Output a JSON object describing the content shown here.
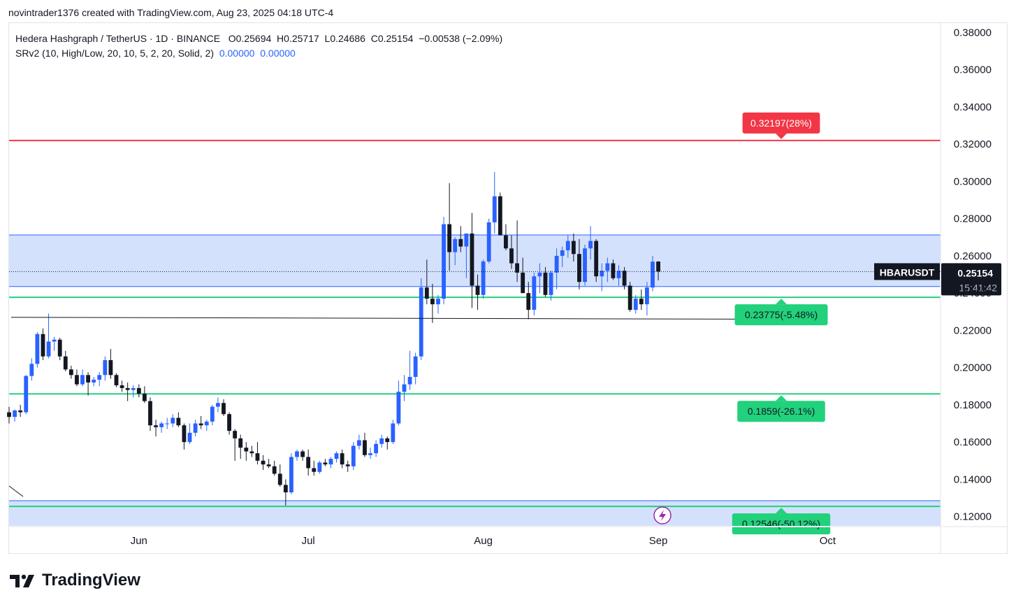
{
  "caption": "novintrader1376 created with TradingView.com, Aug 23, 2025 04:18 UTC-4",
  "legend": {
    "symbol_line": "Hedera Hashgraph / TetherUS · 1D · BINANCE",
    "open": "O0.25694",
    "high": "H0.25717",
    "low": "L0.24686",
    "close": "C0.25154",
    "change": "−0.00538 (−2.09%)",
    "indicator": "SRv2 (10, High/Low, 20, 10, 5, 2, 20, Solid, 2)",
    "indicator_v1": "0.00000",
    "indicator_v2": "0.00000"
  },
  "brand": {
    "name": "TradingView",
    "icon": "tradingview-logo-icon"
  },
  "price_tag": {
    "symbol": "HBARUSDT",
    "price": "0.25154",
    "countdown": "15:41:42"
  },
  "colors": {
    "up": "#2962ff",
    "down": "#131722",
    "resistance": "#f23645",
    "support": "#22d17b",
    "zone": "#d4e1fd",
    "zone_border": "#2962ff",
    "label_green": "#22d17b",
    "label_red": "#f23645"
  },
  "chart_data": {
    "type": "candlestick",
    "title": "Hedera Hashgraph / TetherUS · 1D · BINANCE",
    "ylim": [
      0.115,
      0.385
    ],
    "y_ticks": [
      "0.12000",
      "0.14000",
      "0.16000",
      "0.18000",
      "0.20000",
      "0.22000",
      "0.24000",
      "0.26000",
      "0.28000",
      "0.30000",
      "0.32000",
      "0.34000",
      "0.36000",
      "0.38000"
    ],
    "x_ticks": [
      "Jun",
      "Jul",
      "Aug",
      "Sep",
      "Oct"
    ],
    "x_range": [
      "2025-05-09",
      "2025-10-21"
    ],
    "levels": [
      {
        "price": 0.32197,
        "label": "0.32197(28%)",
        "color": "red"
      },
      {
        "price": 0.23775,
        "label": "0.23775(-5.48%)",
        "color": "green"
      },
      {
        "price": 0.1859,
        "label": "0.1859(-26.1%)",
        "color": "green"
      },
      {
        "price": 0.12546,
        "label": "0.12546(-50.12%)",
        "color": "green"
      }
    ],
    "zones": [
      {
        "from": 0.2435,
        "to": 0.2712
      },
      {
        "from": 0.115,
        "to": 0.1285
      }
    ],
    "trendline": {
      "start": [
        "2025-05-09",
        0.227
      ],
      "end": [
        "2025-09-16",
        0.226
      ]
    },
    "candles": [
      {
        "d": "2025-05-09",
        "o": 0.176,
        "h": 0.179,
        "l": 0.17,
        "c": 0.1735
      },
      {
        "d": "2025-05-10",
        "o": 0.1735,
        "h": 0.1775,
        "l": 0.171,
        "c": 0.177
      },
      {
        "d": "2025-05-11",
        "o": 0.177,
        "h": 0.18,
        "l": 0.1735,
        "c": 0.176
      },
      {
        "d": "2025-05-12",
        "o": 0.176,
        "h": 0.196,
        "l": 0.175,
        "c": 0.1955
      },
      {
        "d": "2025-05-13",
        "o": 0.1955,
        "h": 0.205,
        "l": 0.193,
        "c": 0.202
      },
      {
        "d": "2025-05-14",
        "o": 0.202,
        "h": 0.219,
        "l": 0.2,
        "c": 0.218
      },
      {
        "d": "2025-05-15",
        "o": 0.218,
        "h": 0.221,
        "l": 0.204,
        "c": 0.206
      },
      {
        "d": "2025-05-16",
        "o": 0.206,
        "h": 0.229,
        "l": 0.205,
        "c": 0.214
      },
      {
        "d": "2025-05-17",
        "o": 0.214,
        "h": 0.2165,
        "l": 0.209,
        "c": 0.215
      },
      {
        "d": "2025-05-18",
        "o": 0.215,
        "h": 0.216,
        "l": 0.204,
        "c": 0.206
      },
      {
        "d": "2025-05-19",
        "o": 0.206,
        "h": 0.209,
        "l": 0.198,
        "c": 0.199
      },
      {
        "d": "2025-05-20",
        "o": 0.199,
        "h": 0.201,
        "l": 0.194,
        "c": 0.196
      },
      {
        "d": "2025-05-21",
        "o": 0.196,
        "h": 0.199,
        "l": 0.19,
        "c": 0.191
      },
      {
        "d": "2025-05-22",
        "o": 0.191,
        "h": 0.199,
        "l": 0.19,
        "c": 0.196
      },
      {
        "d": "2025-05-23",
        "o": 0.196,
        "h": 0.1975,
        "l": 0.185,
        "c": 0.192
      },
      {
        "d": "2025-05-24",
        "o": 0.192,
        "h": 0.195,
        "l": 0.19,
        "c": 0.1935
      },
      {
        "d": "2025-05-25",
        "o": 0.1935,
        "h": 0.1975,
        "l": 0.19,
        "c": 0.196
      },
      {
        "d": "2025-05-26",
        "o": 0.196,
        "h": 0.206,
        "l": 0.193,
        "c": 0.204
      },
      {
        "d": "2025-05-27",
        "o": 0.204,
        "h": 0.21,
        "l": 0.194,
        "c": 0.196
      },
      {
        "d": "2025-05-28",
        "o": 0.196,
        "h": 0.197,
        "l": 0.1895,
        "c": 0.1905
      },
      {
        "d": "2025-05-29",
        "o": 0.1905,
        "h": 0.193,
        "l": 0.187,
        "c": 0.189
      },
      {
        "d": "2025-05-30",
        "o": 0.189,
        "h": 0.192,
        "l": 0.182,
        "c": 0.188
      },
      {
        "d": "2025-05-31",
        "o": 0.188,
        "h": 0.1905,
        "l": 0.184,
        "c": 0.189
      },
      {
        "d": "2025-06-01",
        "o": 0.189,
        "h": 0.191,
        "l": 0.184,
        "c": 0.186
      },
      {
        "d": "2025-06-02",
        "o": 0.186,
        "h": 0.19,
        "l": 0.181,
        "c": 0.182
      },
      {
        "d": "2025-06-03",
        "o": 0.182,
        "h": 0.184,
        "l": 0.166,
        "c": 0.169
      },
      {
        "d": "2025-06-04",
        "o": 0.169,
        "h": 0.172,
        "l": 0.163,
        "c": 0.168
      },
      {
        "d": "2025-06-05",
        "o": 0.168,
        "h": 0.171,
        "l": 0.165,
        "c": 0.17
      },
      {
        "d": "2025-06-06",
        "o": 0.17,
        "h": 0.173,
        "l": 0.167,
        "c": 0.17
      },
      {
        "d": "2025-06-07",
        "o": 0.17,
        "h": 0.175,
        "l": 0.168,
        "c": 0.173
      },
      {
        "d": "2025-06-08",
        "o": 0.173,
        "h": 0.176,
        "l": 0.168,
        "c": 0.169
      },
      {
        "d": "2025-06-09",
        "o": 0.169,
        "h": 0.17,
        "l": 0.156,
        "c": 0.16
      },
      {
        "d": "2025-06-10",
        "o": 0.16,
        "h": 0.17,
        "l": 0.159,
        "c": 0.165
      },
      {
        "d": "2025-06-11",
        "o": 0.165,
        "h": 0.172,
        "l": 0.163,
        "c": 0.17
      },
      {
        "d": "2025-06-12",
        "o": 0.17,
        "h": 0.174,
        "l": 0.167,
        "c": 0.169
      },
      {
        "d": "2025-06-13",
        "o": 0.169,
        "h": 0.172,
        "l": 0.166,
        "c": 0.171
      },
      {
        "d": "2025-06-14",
        "o": 0.171,
        "h": 0.18,
        "l": 0.169,
        "c": 0.179
      },
      {
        "d": "2025-06-15",
        "o": 0.179,
        "h": 0.184,
        "l": 0.176,
        "c": 0.181
      },
      {
        "d": "2025-06-16",
        "o": 0.181,
        "h": 0.183,
        "l": 0.174,
        "c": 0.175
      },
      {
        "d": "2025-06-17",
        "o": 0.175,
        "h": 0.176,
        "l": 0.164,
        "c": 0.166
      },
      {
        "d": "2025-06-18",
        "o": 0.166,
        "h": 0.167,
        "l": 0.15,
        "c": 0.162
      },
      {
        "d": "2025-06-19",
        "o": 0.162,
        "h": 0.164,
        "l": 0.151,
        "c": 0.157
      },
      {
        "d": "2025-06-20",
        "o": 0.157,
        "h": 0.16,
        "l": 0.15,
        "c": 0.155
      },
      {
        "d": "2025-06-21",
        "o": 0.155,
        "h": 0.158,
        "l": 0.152,
        "c": 0.154
      },
      {
        "d": "2025-06-22",
        "o": 0.154,
        "h": 0.16,
        "l": 0.148,
        "c": 0.15
      },
      {
        "d": "2025-06-23",
        "o": 0.15,
        "h": 0.153,
        "l": 0.145,
        "c": 0.148
      },
      {
        "d": "2025-06-24",
        "o": 0.148,
        "h": 0.151,
        "l": 0.146,
        "c": 0.147
      },
      {
        "d": "2025-06-25",
        "o": 0.147,
        "h": 0.15,
        "l": 0.142,
        "c": 0.143
      },
      {
        "d": "2025-06-26",
        "o": 0.143,
        "h": 0.148,
        "l": 0.136,
        "c": 0.137
      },
      {
        "d": "2025-06-27",
        "o": 0.137,
        "h": 0.14,
        "l": 0.126,
        "c": 0.133
      },
      {
        "d": "2025-06-28",
        "o": 0.133,
        "h": 0.154,
        "l": 0.132,
        "c": 0.152
      },
      {
        "d": "2025-06-29",
        "o": 0.152,
        "h": 0.156,
        "l": 0.15,
        "c": 0.155
      },
      {
        "d": "2025-06-30",
        "o": 0.155,
        "h": 0.156,
        "l": 0.15,
        "c": 0.152
      },
      {
        "d": "2025-07-01",
        "o": 0.152,
        "h": 0.156,
        "l": 0.142,
        "c": 0.146
      },
      {
        "d": "2025-07-02",
        "o": 0.146,
        "h": 0.15,
        "l": 0.142,
        "c": 0.144
      },
      {
        "d": "2025-07-03",
        "o": 0.144,
        "h": 0.15,
        "l": 0.143,
        "c": 0.149
      },
      {
        "d": "2025-07-04",
        "o": 0.149,
        "h": 0.151,
        "l": 0.147,
        "c": 0.148
      },
      {
        "d": "2025-07-05",
        "o": 0.148,
        "h": 0.152,
        "l": 0.146,
        "c": 0.151
      },
      {
        "d": "2025-07-06",
        "o": 0.151,
        "h": 0.155,
        "l": 0.149,
        "c": 0.154
      },
      {
        "d": "2025-07-07",
        "o": 0.154,
        "h": 0.156,
        "l": 0.146,
        "c": 0.148
      },
      {
        "d": "2025-07-08",
        "o": 0.148,
        "h": 0.15,
        "l": 0.144,
        "c": 0.147
      },
      {
        "d": "2025-07-09",
        "o": 0.147,
        "h": 0.16,
        "l": 0.145,
        "c": 0.158
      },
      {
        "d": "2025-07-10",
        "o": 0.158,
        "h": 0.164,
        "l": 0.156,
        "c": 0.161
      },
      {
        "d": "2025-07-11",
        "o": 0.161,
        "h": 0.165,
        "l": 0.152,
        "c": 0.153
      },
      {
        "d": "2025-07-12",
        "o": 0.153,
        "h": 0.157,
        "l": 0.151,
        "c": 0.154
      },
      {
        "d": "2025-07-13",
        "o": 0.154,
        "h": 0.161,
        "l": 0.152,
        "c": 0.159
      },
      {
        "d": "2025-07-14",
        "o": 0.159,
        "h": 0.164,
        "l": 0.157,
        "c": 0.162
      },
      {
        "d": "2025-07-15",
        "o": 0.162,
        "h": 0.163,
        "l": 0.156,
        "c": 0.16
      },
      {
        "d": "2025-07-16",
        "o": 0.16,
        "h": 0.172,
        "l": 0.159,
        "c": 0.17
      },
      {
        "d": "2025-07-17",
        "o": 0.17,
        "h": 0.193,
        "l": 0.169,
        "c": 0.187
      },
      {
        "d": "2025-07-18",
        "o": 0.187,
        "h": 0.196,
        "l": 0.182,
        "c": 0.191
      },
      {
        "d": "2025-07-19",
        "o": 0.191,
        "h": 0.209,
        "l": 0.188,
        "c": 0.195
      },
      {
        "d": "2025-07-20",
        "o": 0.195,
        "h": 0.208,
        "l": 0.191,
        "c": 0.206
      },
      {
        "d": "2025-07-21",
        "o": 0.206,
        "h": 0.248,
        "l": 0.204,
        "c": 0.243
      },
      {
        "d": "2025-07-22",
        "o": 0.243,
        "h": 0.258,
        "l": 0.234,
        "c": 0.237
      },
      {
        "d": "2025-07-23",
        "o": 0.237,
        "h": 0.245,
        "l": 0.224,
        "c": 0.234
      },
      {
        "d": "2025-07-24",
        "o": 0.234,
        "h": 0.239,
        "l": 0.229,
        "c": 0.237
      },
      {
        "d": "2025-07-25",
        "o": 0.237,
        "h": 0.281,
        "l": 0.234,
        "c": 0.277
      },
      {
        "d": "2025-07-26",
        "o": 0.277,
        "h": 0.299,
        "l": 0.252,
        "c": 0.262
      },
      {
        "d": "2025-07-27",
        "o": 0.262,
        "h": 0.27,
        "l": 0.255,
        "c": 0.269
      },
      {
        "d": "2025-07-28",
        "o": 0.269,
        "h": 0.276,
        "l": 0.262,
        "c": 0.265
      },
      {
        "d": "2025-07-29",
        "o": 0.265,
        "h": 0.272,
        "l": 0.248,
        "c": 0.272
      },
      {
        "d": "2025-07-30",
        "o": 0.272,
        "h": 0.283,
        "l": 0.232,
        "c": 0.244
      },
      {
        "d": "2025-07-31",
        "o": 0.244,
        "h": 0.25,
        "l": 0.231,
        "c": 0.239
      },
      {
        "d": "2025-08-01",
        "o": 0.239,
        "h": 0.258,
        "l": 0.237,
        "c": 0.257
      },
      {
        "d": "2025-08-02",
        "o": 0.257,
        "h": 0.28,
        "l": 0.256,
        "c": 0.278
      },
      {
        "d": "2025-08-03",
        "o": 0.278,
        "h": 0.305,
        "l": 0.272,
        "c": 0.292
      },
      {
        "d": "2025-08-04",
        "o": 0.292,
        "h": 0.294,
        "l": 0.272,
        "c": 0.271
      },
      {
        "d": "2025-08-05",
        "o": 0.271,
        "h": 0.277,
        "l": 0.263,
        "c": 0.264
      },
      {
        "d": "2025-08-06",
        "o": 0.264,
        "h": 0.271,
        "l": 0.253,
        "c": 0.256
      },
      {
        "d": "2025-08-07",
        "o": 0.256,
        "h": 0.279,
        "l": 0.246,
        "c": 0.251
      },
      {
        "d": "2025-08-08",
        "o": 0.251,
        "h": 0.259,
        "l": 0.24,
        "c": 0.24
      },
      {
        "d": "2025-08-09",
        "o": 0.24,
        "h": 0.246,
        "l": 0.226,
        "c": 0.231
      },
      {
        "d": "2025-08-10",
        "o": 0.231,
        "h": 0.251,
        "l": 0.228,
        "c": 0.249
      },
      {
        "d": "2025-08-11",
        "o": 0.249,
        "h": 0.256,
        "l": 0.24,
        "c": 0.251
      },
      {
        "d": "2025-08-12",
        "o": 0.251,
        "h": 0.254,
        "l": 0.238,
        "c": 0.239
      },
      {
        "d": "2025-08-13",
        "o": 0.239,
        "h": 0.252,
        "l": 0.236,
        "c": 0.251
      },
      {
        "d": "2025-08-14",
        "o": 0.251,
        "h": 0.264,
        "l": 0.242,
        "c": 0.26
      },
      {
        "d": "2025-08-15",
        "o": 0.26,
        "h": 0.265,
        "l": 0.254,
        "c": 0.263
      },
      {
        "d": "2025-08-16",
        "o": 0.263,
        "h": 0.271,
        "l": 0.259,
        "c": 0.268
      },
      {
        "d": "2025-08-17",
        "o": 0.268,
        "h": 0.272,
        "l": 0.257,
        "c": 0.261
      },
      {
        "d": "2025-08-18",
        "o": 0.261,
        "h": 0.269,
        "l": 0.242,
        "c": 0.246
      },
      {
        "d": "2025-08-19",
        "o": 0.246,
        "h": 0.266,
        "l": 0.244,
        "c": 0.264
      },
      {
        "d": "2025-08-20",
        "o": 0.264,
        "h": 0.276,
        "l": 0.258,
        "c": 0.268
      },
      {
        "d": "2025-08-21",
        "o": 0.268,
        "h": 0.269,
        "l": 0.246,
        "c": 0.249
      },
      {
        "d": "2025-08-22",
        "o": 0.249,
        "h": 0.256,
        "l": 0.241,
        "c": 0.252
      },
      {
        "d": "2025-08-23",
        "o": 0.252,
        "h": 0.259,
        "l": 0.246,
        "c": 0.256
      },
      {
        "d": "2025-08-24",
        "o": 0.256,
        "h": 0.258,
        "l": 0.247,
        "c": 0.248
      },
      {
        "d": "2025-08-25",
        "o": 0.248,
        "h": 0.255,
        "l": 0.244,
        "c": 0.252
      },
      {
        "d": "2025-08-26",
        "o": 0.252,
        "h": 0.254,
        "l": 0.242,
        "c": 0.244
      },
      {
        "d": "2025-08-27",
        "o": 0.244,
        "h": 0.246,
        "l": 0.23,
        "c": 0.231
      },
      {
        "d": "2025-08-28",
        "o": 0.231,
        "h": 0.239,
        "l": 0.229,
        "c": 0.237
      },
      {
        "d": "2025-08-29",
        "o": 0.237,
        "h": 0.242,
        "l": 0.231,
        "c": 0.234
      },
      {
        "d": "2025-08-30",
        "o": 0.234,
        "h": 0.246,
        "l": 0.228,
        "c": 0.243
      },
      {
        "d": "2025-08-31",
        "o": 0.243,
        "h": 0.26,
        "l": 0.241,
        "c": 0.2569
      },
      {
        "d": "2025-09-01",
        "o": 0.25694,
        "h": 0.25717,
        "l": 0.24686,
        "c": 0.25154
      }
    ]
  }
}
